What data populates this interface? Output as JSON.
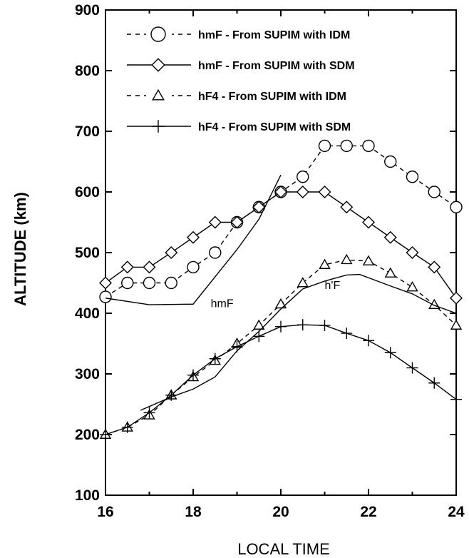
{
  "chart_data": {
    "type": "line",
    "title": "",
    "xlabel": "LOCAL TIME",
    "ylabel": "ALTITUDE (km)",
    "xlim": [
      16,
      24
    ],
    "ylim": [
      100,
      900
    ],
    "xticks": [
      16,
      18,
      20,
      22,
      24
    ],
    "yticks": [
      100,
      200,
      300,
      400,
      500,
      600,
      700,
      800,
      900
    ],
    "grid": false,
    "legend_position": "top-left",
    "series": [
      {
        "name": "hmF - From SUPIM with IDM",
        "marker": "circle",
        "line": "dashed",
        "x": [
          16,
          16.5,
          17,
          17.5,
          18,
          18.5,
          19,
          19.5,
          20,
          20.5,
          21,
          21.5,
          22,
          22.5,
          23,
          23.5,
          24
        ],
        "y": [
          427,
          450,
          450,
          450,
          476,
          500,
          550,
          575,
          600,
          625,
          676,
          676,
          676,
          650,
          625,
          600,
          575
        ]
      },
      {
        "name": "hmF - From SUPIM with SDM",
        "marker": "diamond",
        "line": "solid",
        "x": [
          16,
          16.5,
          17,
          17.5,
          18,
          18.5,
          19,
          19.5,
          20,
          20.5,
          21,
          21.5,
          22,
          22.5,
          23,
          23.5,
          24
        ],
        "y": [
          450,
          476,
          476,
          500,
          525,
          550,
          550,
          575,
          600,
          600,
          600,
          575,
          550,
          525,
          500,
          476,
          425
        ]
      },
      {
        "name": "hF4 - From SUPIM with IDM",
        "marker": "triangle",
        "line": "dashed",
        "x": [
          16,
          16.5,
          17,
          17.5,
          18,
          18.5,
          19,
          19.5,
          20,
          20.5,
          21,
          21.5,
          22,
          22.5,
          23,
          23.5,
          24
        ],
        "y": [
          200,
          212,
          232,
          265,
          295,
          322,
          350,
          380,
          415,
          450,
          480,
          488,
          486,
          466,
          443,
          414,
          380
        ]
      },
      {
        "name": "hF4 - From SUPIM with SDM",
        "marker": "plus",
        "line": "solid",
        "x": [
          16,
          16.5,
          17,
          17.5,
          18,
          18.5,
          19,
          19.5,
          20,
          20.5,
          21,
          21.5,
          22,
          22.5,
          23,
          23.5,
          24
        ],
        "y": [
          200,
          212,
          236,
          265,
          298,
          325,
          345,
          362,
          378,
          381,
          380,
          367,
          355,
          335,
          310,
          285,
          258
        ]
      },
      {
        "name": "hmF",
        "marker": "none",
        "line": "solid",
        "label": "hmF",
        "x": [
          16,
          17,
          18,
          19,
          19.5,
          20
        ],
        "y": [
          425,
          414,
          415,
          505,
          555,
          628
        ]
      },
      {
        "name": "h'F",
        "marker": "none",
        "line": "solid",
        "label": "h'F",
        "x": [
          16.8,
          17.5,
          18,
          18.5,
          19,
          19.5,
          20,
          20.5,
          21,
          21.5,
          21.8,
          22.5,
          23,
          23.5,
          24
        ],
        "y": [
          240,
          262,
          275,
          295,
          338,
          370,
          407,
          440,
          453,
          463,
          464,
          445,
          432,
          413,
          400
        ]
      }
    ]
  }
}
